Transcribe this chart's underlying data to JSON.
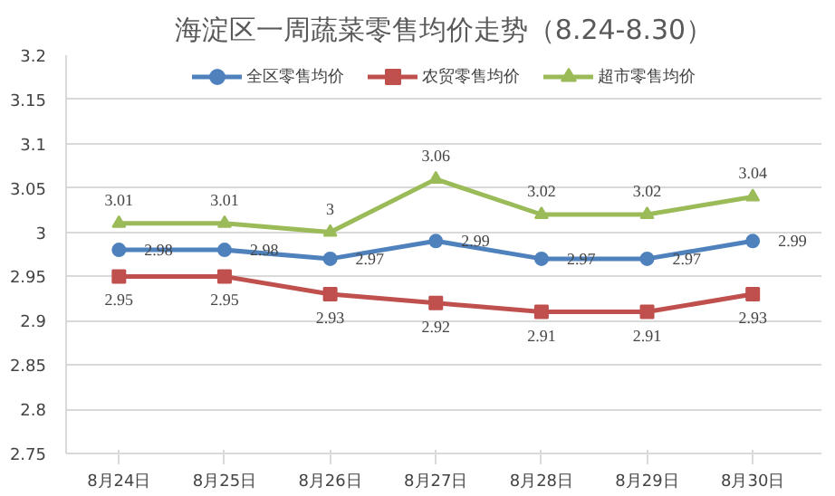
{
  "chart_data": {
    "type": "line",
    "title": "海淀区一周蔬菜零售均价走势（8.24-8.30）",
    "categories": [
      "8月24日",
      "8月25日",
      "8月26日",
      "8月27日",
      "8月28日",
      "8月29日",
      "8月30日"
    ],
    "series": [
      {
        "name": "全区零售均价",
        "color": "#4f81bd",
        "marker": "circle",
        "values": [
          2.98,
          2.98,
          2.97,
          2.99,
          2.97,
          2.97,
          2.99
        ]
      },
      {
        "name": "农贸零售均价",
        "color": "#c0504d",
        "marker": "square",
        "values": [
          2.95,
          2.95,
          2.93,
          2.92,
          2.91,
          2.91,
          2.93
        ]
      },
      {
        "name": "超市零售均价",
        "color": "#9bbb59",
        "marker": "triangle",
        "values": [
          3.01,
          3.01,
          3,
          3.06,
          3.02,
          3.02,
          3.04
        ]
      }
    ],
    "ylim": [
      2.75,
      3.2
    ],
    "yticks": [
      2.75,
      {
        "value": 2.8,
        "label": "2.8"
      },
      2.85,
      {
        "value": 2.9,
        "label": "2.9"
      },
      2.95,
      {
        "value": 3,
        "label": "3"
      },
      3.05,
      {
        "value": 3.1,
        "label": "3.1"
      },
      3.15,
      {
        "value": 3.2,
        "label": "3.2"
      }
    ],
    "grid": "y",
    "legend": "top",
    "data_labels": true
  }
}
